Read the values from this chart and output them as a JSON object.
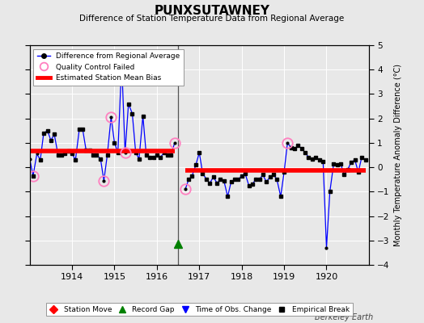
{
  "title": "PUNXSUTAWNEY",
  "subtitle": "Difference of Station Temperature Data from Regional Average",
  "ylabel": "Monthly Temperature Anomaly Difference (°C)",
  "credit": "Berkeley Earth",
  "background_color": "#e8e8e8",
  "plot_background": "#e8e8e8",
  "ylim": [
    -4,
    5
  ],
  "yticks": [
    -4,
    -3,
    -2,
    -1,
    0,
    1,
    2,
    3,
    4,
    5
  ],
  "xlim": [
    1913.0,
    1921.0
  ],
  "xticks": [
    1914,
    1915,
    1916,
    1917,
    1918,
    1919,
    1920
  ],
  "segment1_bias": 0.65,
  "segment2_bias": -0.12,
  "break_x": 1916.5,
  "record_gap_x": 1916.5,
  "qc_failed": [
    [
      1913.08,
      -0.35
    ],
    [
      1914.75,
      -0.55
    ],
    [
      1914.92,
      2.05
    ],
    [
      1915.25,
      0.6
    ],
    [
      1916.42,
      1.0
    ],
    [
      1916.67,
      -0.9
    ],
    [
      1919.08,
      1.0
    ]
  ],
  "data_seg1": [
    [
      1913.0,
      0.35
    ],
    [
      1913.08,
      -0.35
    ],
    [
      1913.17,
      0.55
    ],
    [
      1913.25,
      0.3
    ],
    [
      1913.33,
      1.4
    ],
    [
      1913.42,
      1.5
    ],
    [
      1913.5,
      1.1
    ],
    [
      1913.58,
      1.35
    ],
    [
      1913.67,
      0.5
    ],
    [
      1913.75,
      0.5
    ],
    [
      1913.83,
      0.55
    ],
    [
      1913.92,
      0.65
    ],
    [
      1914.0,
      0.55
    ],
    [
      1914.08,
      0.3
    ],
    [
      1914.17,
      1.55
    ],
    [
      1914.25,
      1.55
    ],
    [
      1914.33,
      0.7
    ],
    [
      1914.42,
      0.7
    ],
    [
      1914.5,
      0.5
    ],
    [
      1914.58,
      0.5
    ],
    [
      1914.67,
      0.35
    ],
    [
      1914.75,
      -0.55
    ],
    [
      1914.83,
      0.5
    ],
    [
      1914.92,
      2.05
    ],
    [
      1915.0,
      1.0
    ],
    [
      1915.08,
      0.6
    ],
    [
      1915.17,
      4.3
    ],
    [
      1915.25,
      0.6
    ],
    [
      1915.33,
      2.6
    ],
    [
      1915.42,
      2.2
    ],
    [
      1915.5,
      0.6
    ],
    [
      1915.58,
      0.35
    ],
    [
      1915.67,
      2.1
    ],
    [
      1915.75,
      0.5
    ],
    [
      1915.83,
      0.4
    ],
    [
      1915.92,
      0.4
    ],
    [
      1916.0,
      0.5
    ],
    [
      1916.08,
      0.4
    ],
    [
      1916.17,
      0.6
    ],
    [
      1916.25,
      0.5
    ],
    [
      1916.33,
      0.5
    ],
    [
      1916.42,
      1.0
    ]
  ],
  "data_seg2": [
    [
      1916.67,
      -0.9
    ],
    [
      1916.75,
      -0.5
    ],
    [
      1916.83,
      -0.35
    ],
    [
      1916.92,
      0.1
    ],
    [
      1917.0,
      0.6
    ],
    [
      1917.08,
      -0.25
    ],
    [
      1917.17,
      -0.5
    ],
    [
      1917.25,
      -0.65
    ],
    [
      1917.33,
      -0.4
    ],
    [
      1917.42,
      -0.65
    ],
    [
      1917.5,
      -0.5
    ],
    [
      1917.58,
      -0.55
    ],
    [
      1917.67,
      -1.2
    ],
    [
      1917.75,
      -0.6
    ],
    [
      1917.83,
      -0.5
    ],
    [
      1917.92,
      -0.5
    ],
    [
      1918.0,
      -0.35
    ],
    [
      1918.08,
      -0.25
    ],
    [
      1918.17,
      -0.75
    ],
    [
      1918.25,
      -0.7
    ],
    [
      1918.33,
      -0.5
    ],
    [
      1918.42,
      -0.5
    ],
    [
      1918.5,
      -0.3
    ],
    [
      1918.58,
      -0.6
    ],
    [
      1918.67,
      -0.4
    ],
    [
      1918.75,
      -0.3
    ],
    [
      1918.83,
      -0.5
    ],
    [
      1918.92,
      -1.2
    ],
    [
      1919.0,
      -0.2
    ],
    [
      1919.08,
      1.0
    ],
    [
      1919.17,
      0.8
    ],
    [
      1919.25,
      0.75
    ],
    [
      1919.33,
      0.9
    ],
    [
      1919.42,
      0.75
    ],
    [
      1919.5,
      0.6
    ],
    [
      1919.58,
      0.4
    ],
    [
      1919.67,
      0.35
    ],
    [
      1919.75,
      0.4
    ],
    [
      1919.83,
      0.3
    ],
    [
      1919.92,
      0.25
    ],
    [
      1920.0,
      -3.3
    ],
    [
      1920.08,
      -1.0
    ],
    [
      1920.17,
      0.15
    ],
    [
      1920.25,
      0.1
    ],
    [
      1920.33,
      0.15
    ],
    [
      1920.42,
      -0.3
    ],
    [
      1920.5,
      -0.1
    ],
    [
      1920.58,
      0.2
    ],
    [
      1920.67,
      0.3
    ],
    [
      1920.75,
      -0.2
    ],
    [
      1920.83,
      0.4
    ],
    [
      1920.92,
      0.3
    ]
  ],
  "empirical_breaks_seg1": [
    [
      1913.08,
      -0.35
    ],
    [
      1913.25,
      0.3
    ],
    [
      1913.33,
      1.4
    ],
    [
      1913.42,
      1.5
    ],
    [
      1913.5,
      1.1
    ],
    [
      1913.58,
      1.35
    ],
    [
      1913.67,
      0.5
    ],
    [
      1913.75,
      0.5
    ],
    [
      1913.83,
      0.55
    ],
    [
      1913.92,
      0.65
    ],
    [
      1914.0,
      0.55
    ],
    [
      1914.08,
      0.3
    ],
    [
      1914.17,
      1.55
    ],
    [
      1914.25,
      1.55
    ],
    [
      1914.33,
      0.7
    ],
    [
      1914.42,
      0.7
    ],
    [
      1914.5,
      0.5
    ],
    [
      1914.58,
      0.5
    ],
    [
      1914.67,
      0.35
    ],
    [
      1914.83,
      0.5
    ],
    [
      1915.0,
      1.0
    ],
    [
      1915.08,
      0.6
    ],
    [
      1915.33,
      2.6
    ],
    [
      1915.42,
      2.2
    ],
    [
      1915.5,
      0.6
    ],
    [
      1915.58,
      0.35
    ],
    [
      1915.67,
      2.1
    ],
    [
      1915.75,
      0.5
    ],
    [
      1915.83,
      0.4
    ],
    [
      1915.92,
      0.4
    ],
    [
      1916.0,
      0.5
    ],
    [
      1916.08,
      0.4
    ],
    [
      1916.17,
      0.6
    ],
    [
      1916.25,
      0.5
    ],
    [
      1916.33,
      0.5
    ]
  ],
  "empirical_breaks_seg2": [
    [
      1916.75,
      -0.5
    ],
    [
      1916.83,
      -0.35
    ],
    [
      1916.92,
      0.1
    ],
    [
      1917.0,
      0.6
    ],
    [
      1917.08,
      -0.25
    ],
    [
      1917.17,
      -0.5
    ],
    [
      1917.25,
      -0.65
    ],
    [
      1917.33,
      -0.4
    ],
    [
      1917.42,
      -0.65
    ],
    [
      1917.5,
      -0.5
    ],
    [
      1917.58,
      -0.55
    ],
    [
      1917.67,
      -1.2
    ],
    [
      1917.75,
      -0.6
    ],
    [
      1917.83,
      -0.5
    ],
    [
      1917.92,
      -0.5
    ],
    [
      1918.0,
      -0.35
    ],
    [
      1918.08,
      -0.25
    ],
    [
      1918.17,
      -0.75
    ],
    [
      1918.25,
      -0.7
    ],
    [
      1918.33,
      -0.5
    ],
    [
      1918.42,
      -0.5
    ],
    [
      1918.5,
      -0.3
    ],
    [
      1918.58,
      -0.6
    ],
    [
      1918.67,
      -0.4
    ],
    [
      1918.75,
      -0.3
    ],
    [
      1918.83,
      -0.5
    ],
    [
      1918.92,
      -1.2
    ],
    [
      1919.0,
      -0.2
    ],
    [
      1919.17,
      0.8
    ],
    [
      1919.25,
      0.75
    ],
    [
      1919.33,
      0.9
    ],
    [
      1919.42,
      0.75
    ],
    [
      1919.5,
      0.6
    ],
    [
      1919.58,
      0.4
    ],
    [
      1919.67,
      0.35
    ],
    [
      1919.75,
      0.4
    ],
    [
      1919.83,
      0.3
    ],
    [
      1919.92,
      0.25
    ],
    [
      1920.08,
      -1.0
    ],
    [
      1920.17,
      0.15
    ],
    [
      1920.25,
      0.1
    ],
    [
      1920.33,
      0.15
    ],
    [
      1920.42,
      -0.3
    ],
    [
      1920.5,
      -0.1
    ],
    [
      1920.58,
      0.2
    ],
    [
      1920.67,
      0.3
    ],
    [
      1920.75,
      -0.2
    ],
    [
      1920.83,
      0.4
    ],
    [
      1920.92,
      0.3
    ]
  ]
}
